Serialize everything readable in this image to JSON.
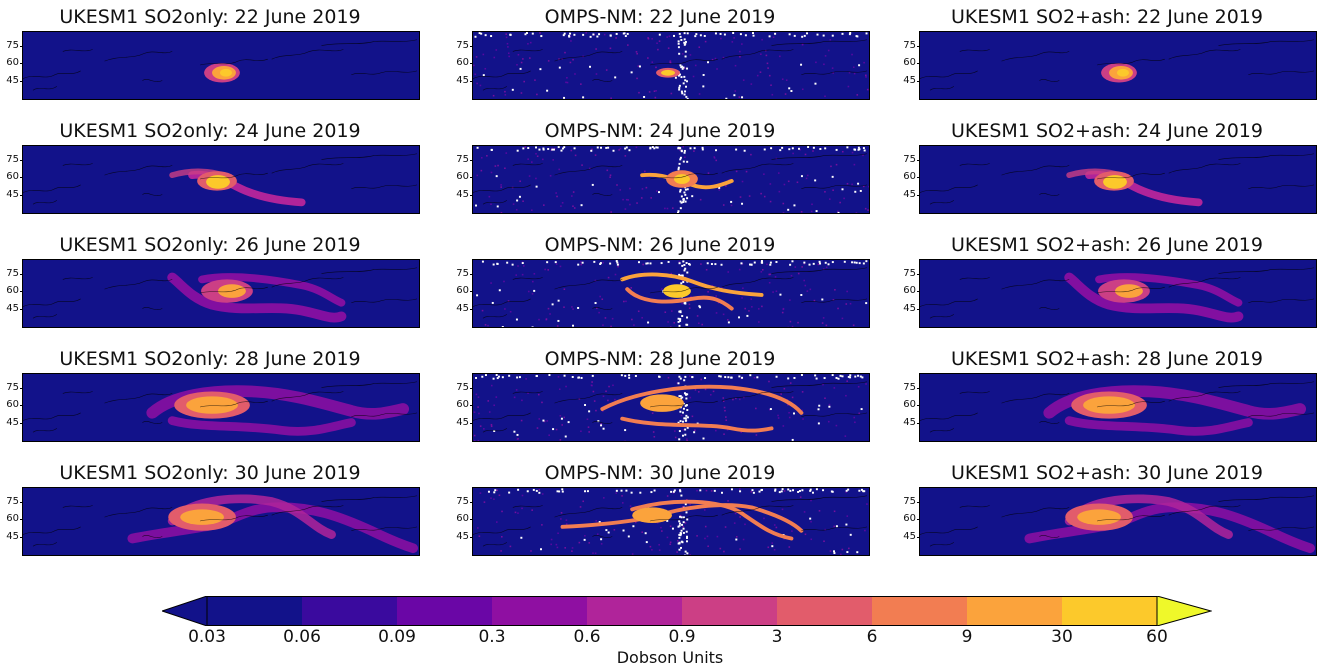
{
  "panels": [
    {
      "title": "UKESM1 SO2only: 22 June 2019",
      "kind": "model",
      "day": 0
    },
    {
      "title": "OMPS-NM: 22 June 2019",
      "kind": "obs",
      "day": 0
    },
    {
      "title": "UKESM1 SO2+ash: 22 June 2019",
      "kind": "model",
      "day": 0
    },
    {
      "title": "UKESM1 SO2only: 24 June 2019",
      "kind": "model",
      "day": 1
    },
    {
      "title": "OMPS-NM: 24 June 2019",
      "kind": "obs",
      "day": 1
    },
    {
      "title": "UKESM1 SO2+ash: 24 June 2019",
      "kind": "model",
      "day": 1
    },
    {
      "title": "UKESM1 SO2only: 26 June 2019",
      "kind": "model",
      "day": 2
    },
    {
      "title": "OMPS-NM: 26 June 2019",
      "kind": "obs",
      "day": 2
    },
    {
      "title": "UKESM1 SO2+ash: 26 June 2019",
      "kind": "model",
      "day": 2
    },
    {
      "title": "UKESM1 SO2only: 28 June 2019",
      "kind": "model",
      "day": 3
    },
    {
      "title": "OMPS-NM: 28 June 2019",
      "kind": "obs",
      "day": 3
    },
    {
      "title": "UKESM1 SO2+ash: 28 June 2019",
      "kind": "model",
      "day": 3
    },
    {
      "title": "UKESM1 SO2only: 30 June 2019",
      "kind": "model",
      "day": 4
    },
    {
      "title": "OMPS-NM: 30 June 2019",
      "kind": "obs",
      "day": 4
    },
    {
      "title": "UKESM1 SO2+ash: 30 June 2019",
      "kind": "model",
      "day": 4
    }
  ],
  "yticks": [
    "75",
    "60",
    "45"
  ],
  "colorbar": {
    "labels": [
      "0.03",
      "0.06",
      "0.09",
      "0.3",
      "0.6",
      "0.9",
      "3",
      "6",
      "9",
      "30",
      "60"
    ],
    "title": "Dobson Units",
    "colors": [
      "#12128a",
      "#3a0a9e",
      "#6a06a6",
      "#8f0fa2",
      "#b0249a",
      "#cc3f85",
      "#e25c6b",
      "#f27d52",
      "#fba33c",
      "#fcc92b",
      "#eff82a"
    ]
  }
}
